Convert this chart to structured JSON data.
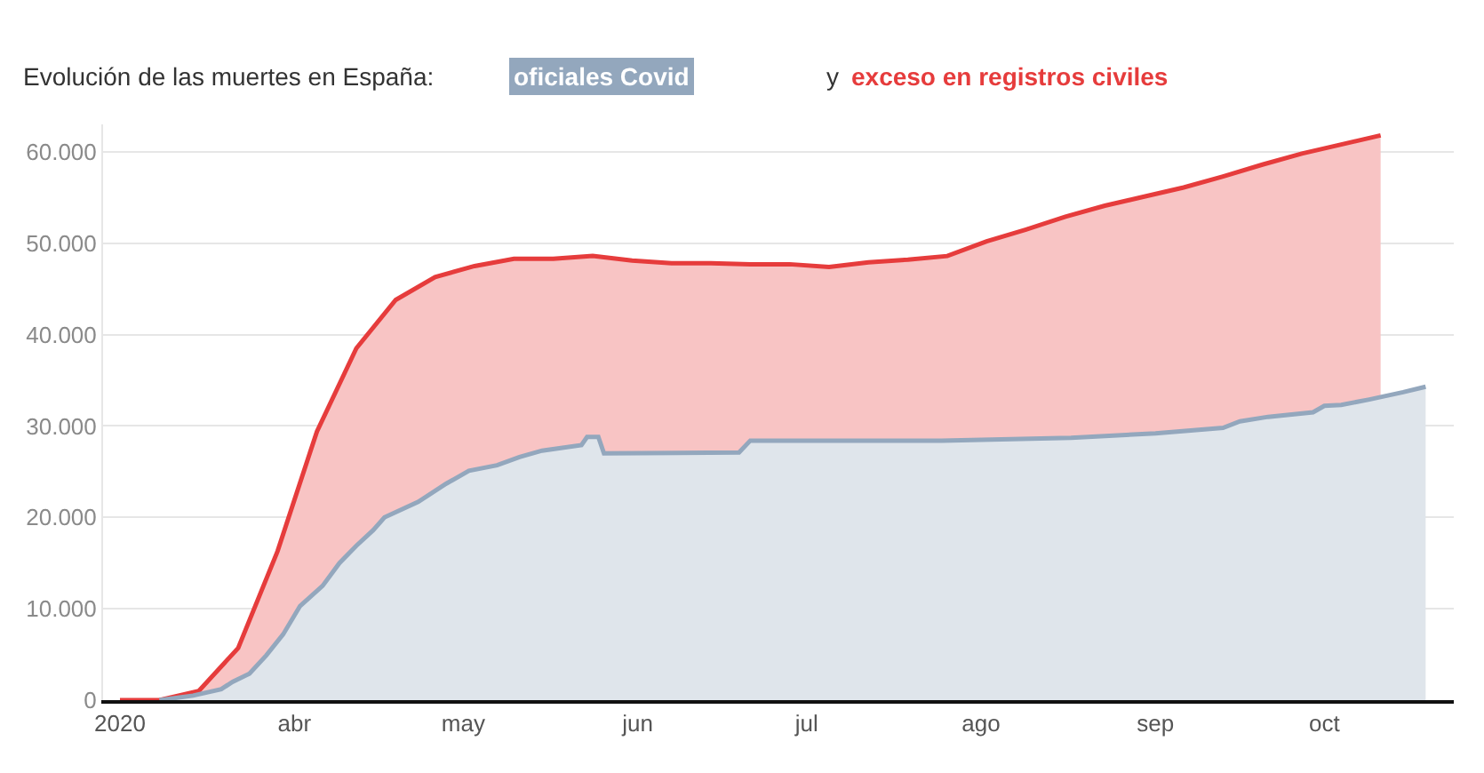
{
  "chart_data": {
    "type": "area",
    "title": "Evolución de las muertes en España:",
    "annotations": [
      "y"
    ],
    "series": [
      {
        "name": "exceso en registros civiles",
        "color": "#e63c3c",
        "x": [
          "2020-03-01",
          "2020-03-08",
          "2020-03-15",
          "2020-03-22",
          "2020-03-29",
          "2020-04-05",
          "2020-04-12",
          "2020-04-19",
          "2020-04-26",
          "2020-05-03",
          "2020-05-10",
          "2020-05-17",
          "2020-05-24",
          "2020-05-31",
          "2020-06-07",
          "2020-06-14",
          "2020-06-21",
          "2020-06-28",
          "2020-07-05",
          "2020-07-12",
          "2020-07-19",
          "2020-07-26",
          "2020-08-02",
          "2020-08-09",
          "2020-08-16",
          "2020-08-23",
          "2020-08-30",
          "2020-09-06",
          "2020-09-13",
          "2020-09-20",
          "2020-09-27",
          "2020-10-04",
          "2020-10-11"
        ],
        "values": [
          0,
          0,
          1000,
          5700,
          16300,
          29400,
          38500,
          43800,
          46300,
          47500,
          48300,
          48300,
          48600,
          48100,
          47800,
          47800,
          47700,
          47700,
          47400,
          47900,
          48200,
          48600,
          50200,
          51500,
          52900,
          54100,
          55100,
          56100,
          57300,
          58600,
          59800,
          60800,
          61800
        ]
      },
      {
        "name": "oficiales Covid",
        "color": "#93a7bd",
        "x": [
          "2020-03-08",
          "2020-03-14",
          "2020-03-19",
          "2020-03-21",
          "2020-03-24",
          "2020-03-27",
          "2020-03-30",
          "2020-04-02",
          "2020-04-06",
          "2020-04-09",
          "2020-04-12",
          "2020-04-15",
          "2020-04-17",
          "2020-04-23",
          "2020-04-28",
          "2020-05-02",
          "2020-05-07",
          "2020-05-11",
          "2020-05-15",
          "2020-05-22",
          "2020-05-23",
          "2020-05-25",
          "2020-05-26",
          "2020-06-19",
          "2020-06-21",
          "2020-07-25",
          "2020-08-17",
          "2020-09-01",
          "2020-09-13",
          "2020-09-16",
          "2020-09-21",
          "2020-09-29",
          "2020-10-01",
          "2020-10-04",
          "2020-10-09",
          "2020-10-15",
          "2020-10-19"
        ],
        "values": [
          0,
          500,
          1200,
          2000,
          2900,
          4900,
          7200,
          10300,
          12500,
          15000,
          16900,
          18600,
          20000,
          21700,
          23700,
          25100,
          25700,
          26600,
          27300,
          27900,
          28800,
          28800,
          27000,
          27100,
          28400,
          28400,
          28700,
          29200,
          29800,
          30500,
          31000,
          31500,
          32200,
          32300,
          32900,
          33700,
          34300
        ]
      }
    ],
    "xlim": [
      "2020-02-27",
      "2020-10-24"
    ],
    "xticks": [
      {
        "value": "2020-03-01",
        "label": "2020"
      },
      {
        "value": "2020-04-01",
        "label": "abr"
      },
      {
        "value": "2020-05-01",
        "label": "may"
      },
      {
        "value": "2020-06-01",
        "label": "jun"
      },
      {
        "value": "2020-07-01",
        "label": "jul"
      },
      {
        "value": "2020-08-01",
        "label": "ago"
      },
      {
        "value": "2020-09-01",
        "label": "sep"
      },
      {
        "value": "2020-10-01",
        "label": "oct"
      }
    ],
    "ylim": [
      0,
      63000
    ],
    "yticks": [
      0,
      {
        "value": 10000,
        "label": "10.000"
      },
      {
        "value": 20000,
        "label": "20.000"
      },
      {
        "value": 30000,
        "label": "30.000"
      },
      {
        "value": 40000,
        "label": "40.000"
      },
      {
        "value": 50000,
        "label": "50.000"
      },
      {
        "value": 60000,
        "label": "60.000"
      }
    ],
    "grid": "y"
  }
}
